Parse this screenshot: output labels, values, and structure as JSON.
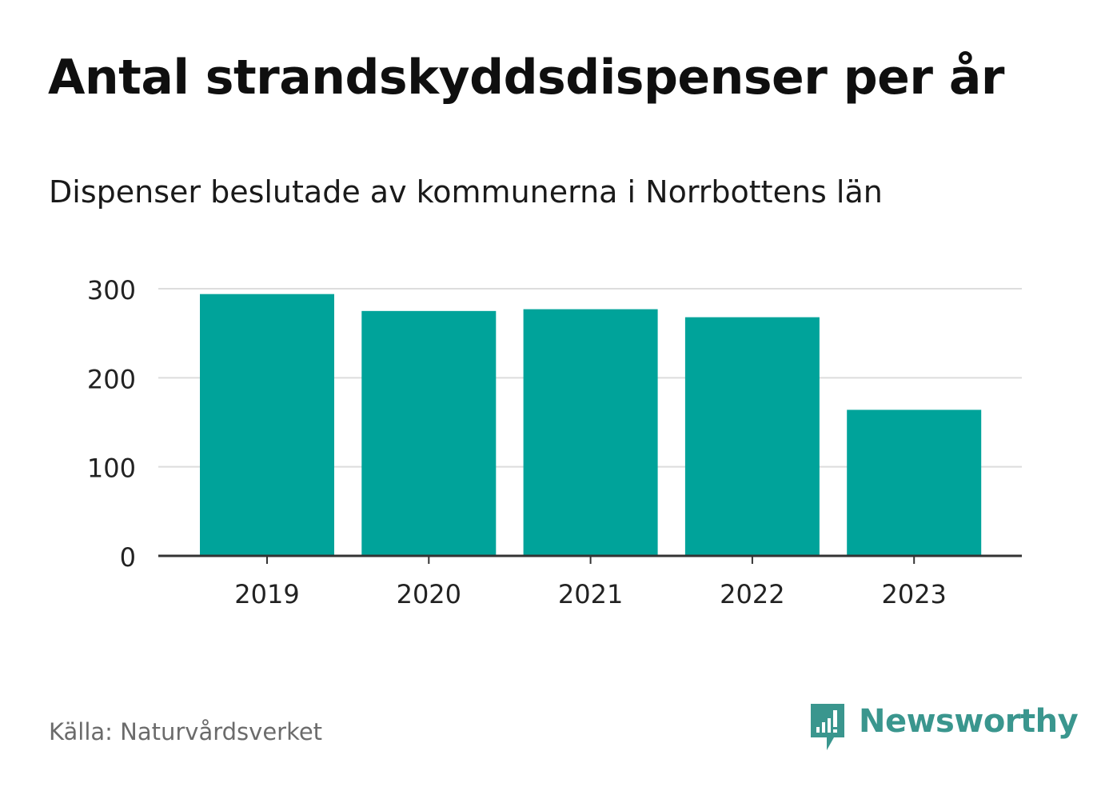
{
  "title": "Antal strandskyddsdispenser per år",
  "subtitle": "Dispenser beslutade av kommunerna i Norrbottens län",
  "source": "Källa: Naturvårdsverket",
  "brand": {
    "name": "Newsworthy",
    "color": "#3a968e",
    "icon": "newsworthy-logo-icon"
  },
  "colors": {
    "bar": "#00a39a",
    "grid": "#dddddd",
    "axis": "#333333",
    "tick_text": "#222222"
  },
  "chart_data": {
    "type": "bar",
    "title": "Antal strandskyddsdispenser per år",
    "subtitle": "Dispenser beslutade av kommunerna i Norrbottens län",
    "categories": [
      "2019",
      "2020",
      "2021",
      "2022",
      "2023"
    ],
    "values": [
      294,
      275,
      277,
      268,
      164
    ],
    "ylim": [
      0,
      300
    ],
    "yticks": [
      0,
      100,
      200,
      300
    ],
    "ytick_labels": [
      "0",
      "100",
      "200",
      "300"
    ],
    "xlabel": "",
    "ylabel": "",
    "grid": true
  }
}
